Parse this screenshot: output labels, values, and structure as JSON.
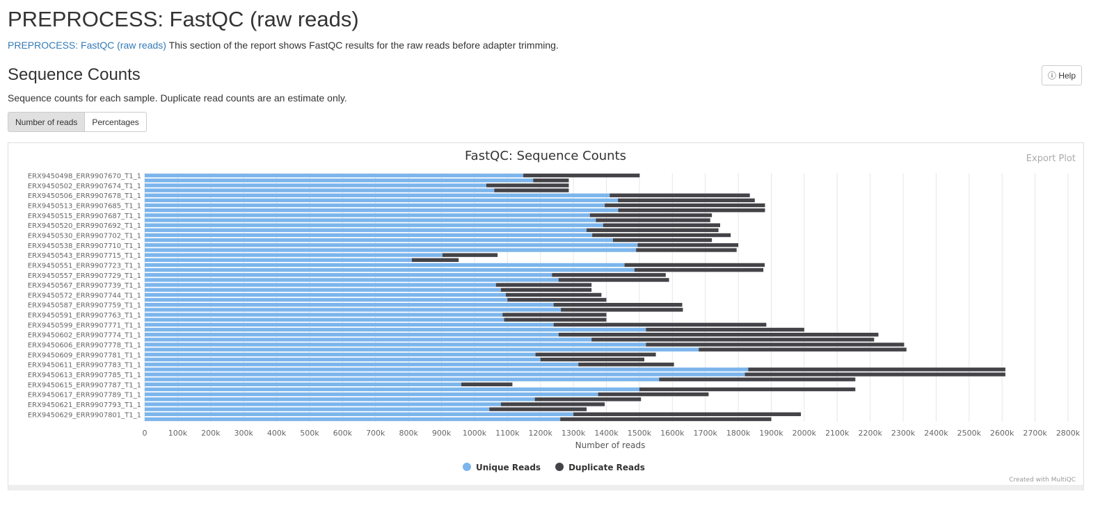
{
  "page": {
    "title": "PREPROCESS: FastQC (raw reads)",
    "intro_link": "PREPROCESS: FastQC (raw reads)",
    "intro_text": "This section of the report shows FastQC results for the raw reads before adapter trimming.",
    "section_title": "Sequence Counts",
    "help_button": "Help",
    "section_text": "Sequence counts for each sample. Duplicate read counts are an estimate only.",
    "toggle_buttons": [
      "Number of reads",
      "Percentages"
    ],
    "export_button": "Export Plot",
    "credit": "Created with MultiQC"
  },
  "chart_data": {
    "type": "stacked_barh",
    "title": "FastQC: Sequence Counts",
    "x_label": "Number of reads",
    "categories": [
      "ERX9450498_ERR9907670_T1_1",
      null,
      "ERX9450502_ERR9907674_T1_1",
      null,
      "ERX9450506_ERR9907678_T1_1",
      null,
      "ERX9450513_ERR9907685_T1_1",
      null,
      "ERX9450515_ERR9907687_T1_1",
      null,
      "ERX9450520_ERR9907692_T1_1",
      null,
      "ERX9450530_ERR9907702_T1_1",
      null,
      "ERX9450538_ERR9907710_T1_1",
      null,
      "ERX9450543_ERR9907715_T1_1",
      null,
      "ERX9450551_ERR9907723_T1_1",
      null,
      "ERX9450557_ERR9907729_T1_1",
      null,
      "ERX9450567_ERR9907739_T1_1",
      null,
      "ERX9450572_ERR9907744_T1_1",
      null,
      "ERX9450587_ERR9907759_T1_1",
      null,
      "ERX9450591_ERR9907763_T1_1",
      null,
      "ERX9450599_ERR9907771_T1_1",
      null,
      "ERX9450602_ERR9907774_T1_1",
      null,
      "ERX9450606_ERR9907778_T1_1",
      null,
      "ERX9450609_ERR9907781_T1_1",
      null,
      "ERX9450611_ERR9907783_T1_1",
      null,
      "ERX9450613_ERR9907785_T1_1",
      null,
      "ERX9450615_ERR9907787_T1_1",
      null,
      "ERX9450617_ERR9907789_T1_1",
      null,
      "ERX9450621_ERR9907793_T1_1",
      null,
      "ERX9450629_ERR9907801_T1_1",
      null
    ],
    "series": [
      {
        "name": "Unique Reads",
        "color": "#7cb5ec",
        "values": [
          1148000,
          1178000,
          1036000,
          1060000,
          1410000,
          1435000,
          1395000,
          1436000,
          1350000,
          1368000,
          1390000,
          1340000,
          1357000,
          1420000,
          1495000,
          1490000,
          903000,
          810000,
          1455000,
          1485000,
          1235000,
          1255000,
          1065000,
          1080000,
          1095000,
          1100000,
          1240000,
          1262000,
          1085000,
          1090000,
          1240000,
          1520000,
          1255000,
          1355000,
          1520000,
          1680000,
          1185000,
          1200000,
          1315000,
          1830000,
          1820000,
          1560000,
          960000,
          1500000,
          1375000,
          1183000,
          1080000,
          1045000,
          1300000,
          1260000
        ]
      },
      {
        "name": "Duplicate Reads",
        "color": "#434348",
        "values": [
          353000,
          108000,
          250000,
          226000,
          425000,
          415000,
          486000,
          445000,
          370000,
          347000,
          355000,
          400000,
          420000,
          300000,
          305000,
          305000,
          167000,
          142000,
          425000,
          391000,
          345000,
          335000,
          290000,
          275000,
          290000,
          300000,
          390000,
          370000,
          315000,
          310000,
          645000,
          480000,
          970000,
          857000,
          783000,
          630000,
          365000,
          315000,
          290000,
          780000,
          790000,
          595000,
          155000,
          655000,
          335000,
          322000,
          315000,
          295000,
          690000,
          640000
        ]
      }
    ],
    "xlim": [
      0,
      2800000
    ],
    "xticks": [
      0,
      {
        "value": 100000,
        "label": "100k"
      },
      {
        "value": 200000,
        "label": "200k"
      },
      {
        "value": 300000,
        "label": "300k"
      },
      {
        "value": 400000,
        "label": "400k"
      },
      {
        "value": 500000,
        "label": "500k"
      },
      {
        "value": 600000,
        "label": "600k"
      },
      {
        "value": 700000,
        "label": "700k"
      },
      {
        "value": 800000,
        "label": "800k"
      },
      {
        "value": 900000,
        "label": "900k"
      },
      {
        "value": 1000000,
        "label": "1000k"
      },
      {
        "value": 1100000,
        "label": "1100k"
      },
      {
        "value": 1200000,
        "label": "1200k"
      },
      {
        "value": 1300000,
        "label": "1300k"
      },
      {
        "value": 1400000,
        "label": "1400k"
      },
      {
        "value": 1500000,
        "label": "1500k"
      },
      {
        "value": 1600000,
        "label": "1600k"
      },
      {
        "value": 1700000,
        "label": "1700k"
      },
      {
        "value": 1800000,
        "label": "1800k"
      },
      {
        "value": 1900000,
        "label": "1900k"
      },
      {
        "value": 2000000,
        "label": "2000k"
      },
      {
        "value": 2100000,
        "label": "2100k"
      },
      {
        "value": 2200000,
        "label": "2200k"
      },
      {
        "value": 2300000,
        "label": "2300k"
      },
      {
        "value": 2400000,
        "label": "2400k"
      },
      {
        "value": 2500000,
        "label": "2500k"
      },
      {
        "value": 2600000,
        "label": "2600k"
      },
      {
        "value": 2700000,
        "label": "2700k"
      },
      {
        "value": 2800000,
        "label": "2800k"
      }
    ],
    "grid": true,
    "legend": "bottom"
  }
}
